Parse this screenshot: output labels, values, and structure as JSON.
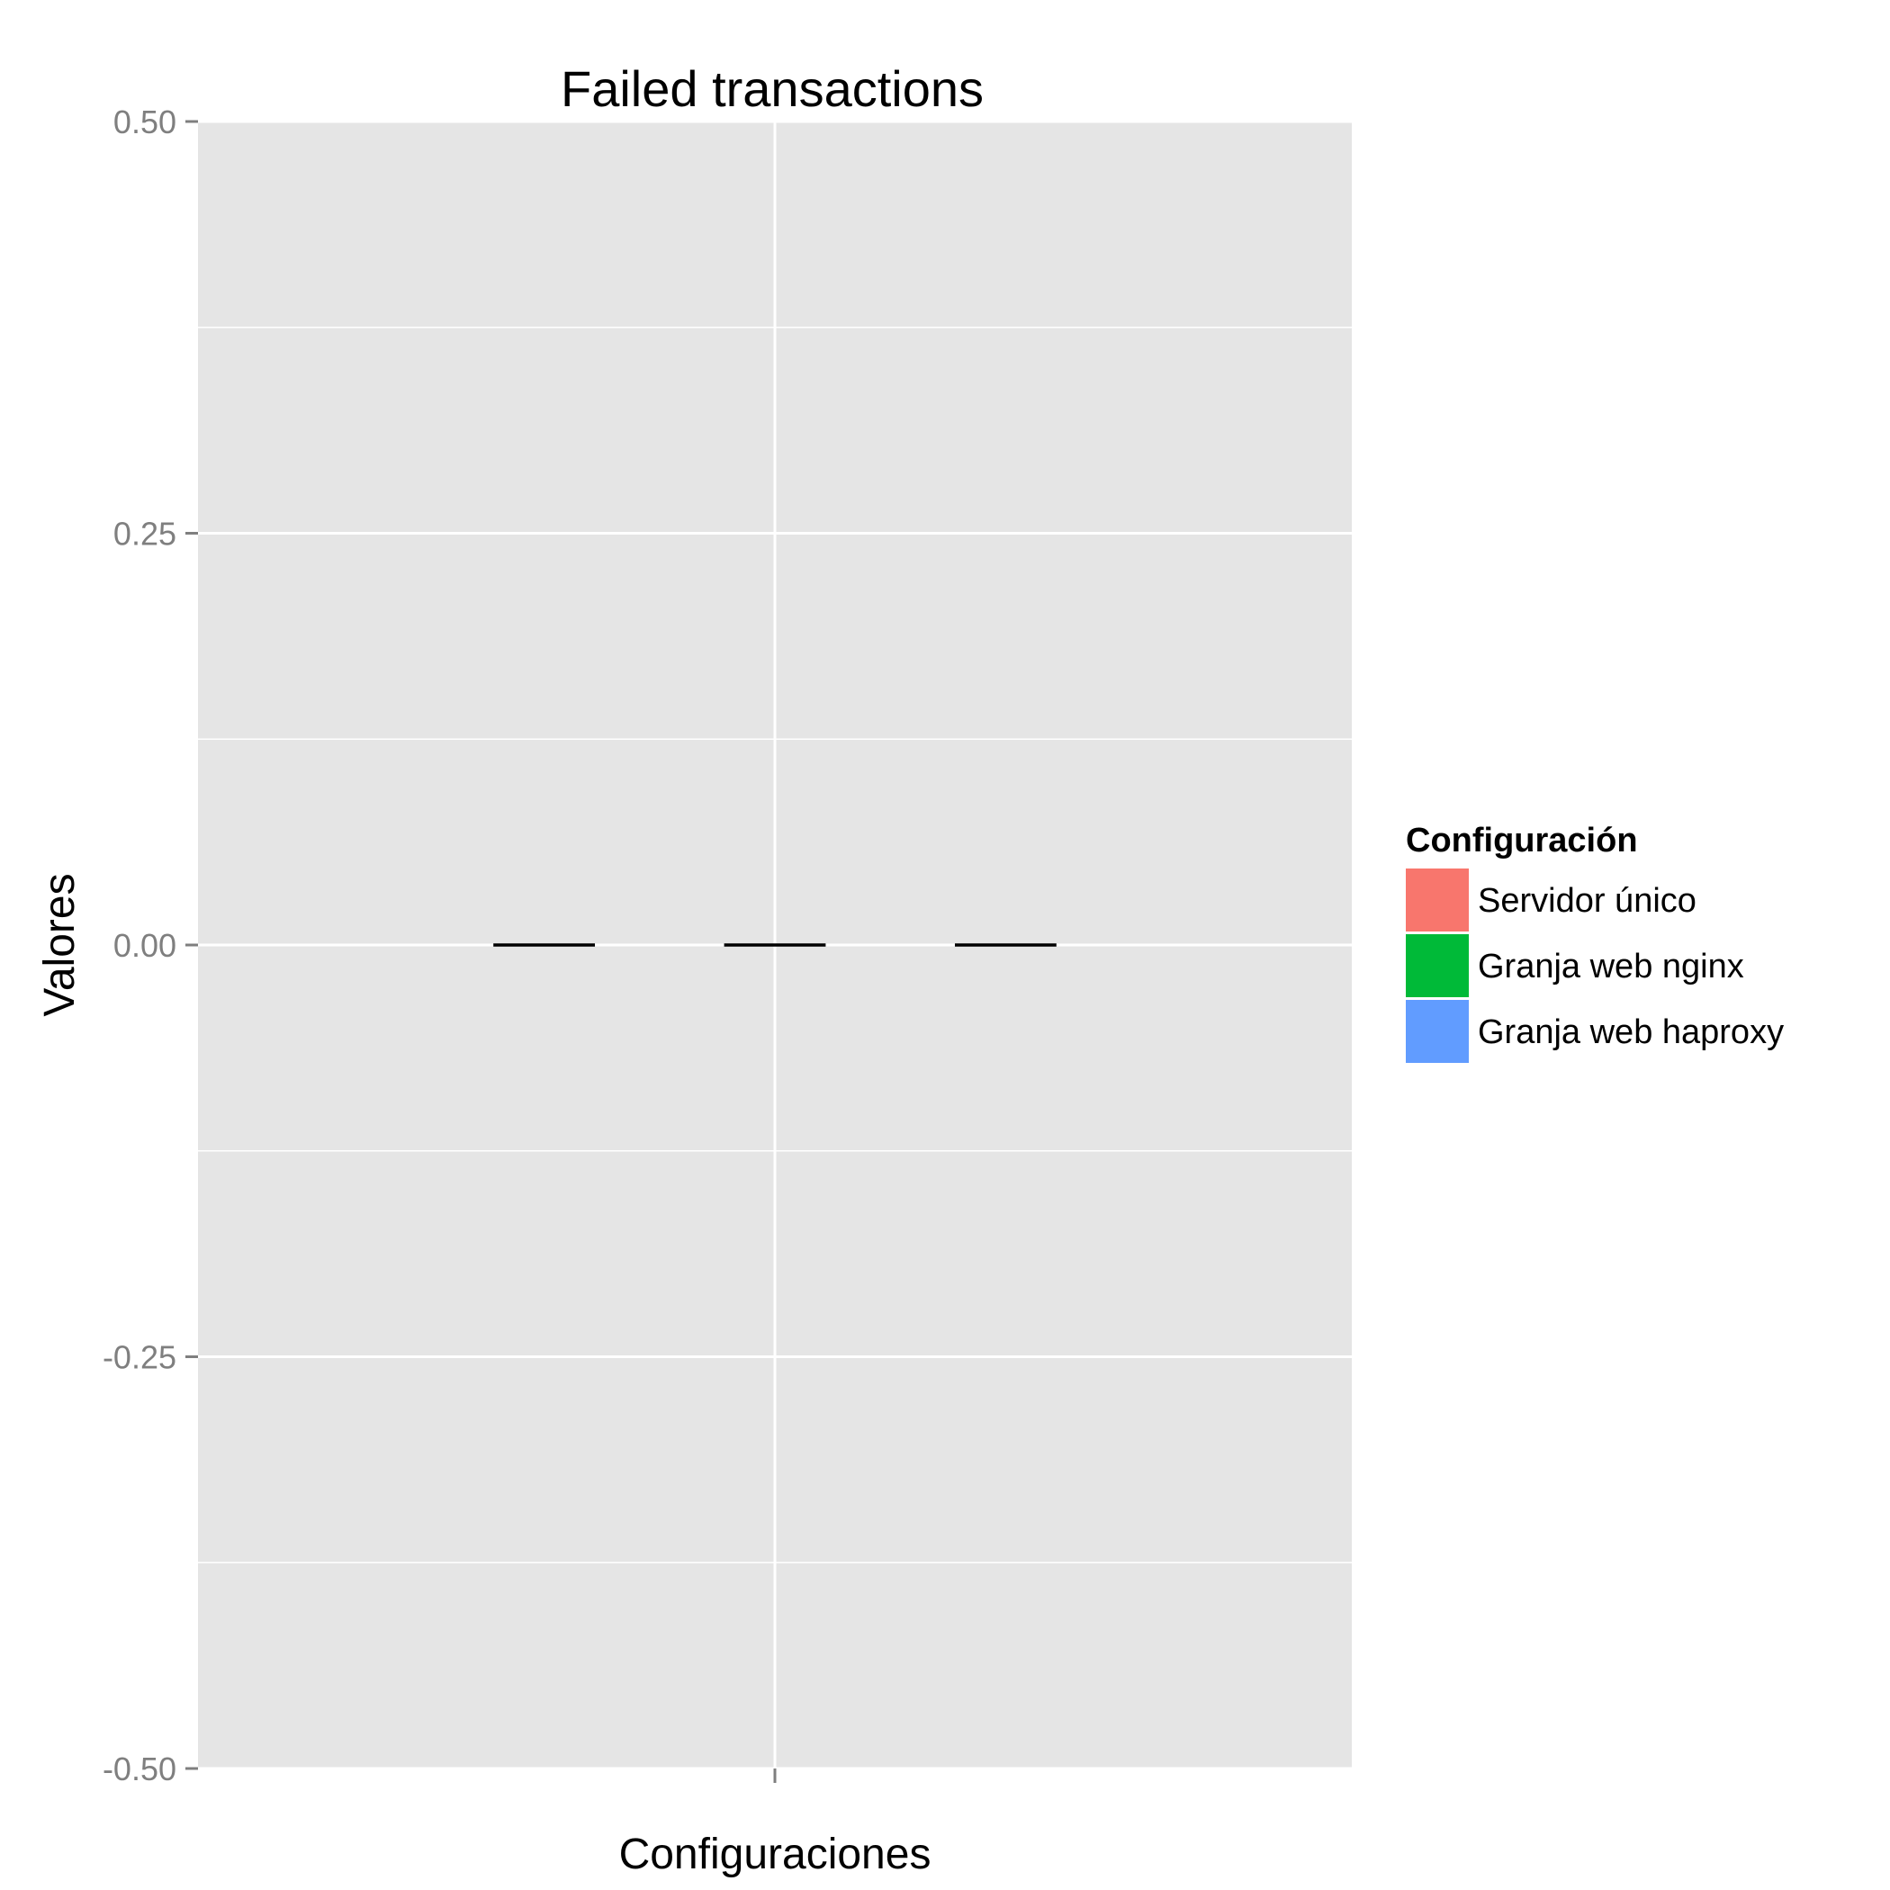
{
  "chart_data": {
    "type": "boxplot",
    "title": "Failed transactions",
    "xlabel": "Configuraciones",
    "ylabel": "Valores",
    "ylim": [
      -0.5,
      0.5
    ],
    "y_ticks": [
      -0.5,
      -0.25,
      0,
      0.25,
      0.5
    ],
    "y_tick_labels": [
      "-0.50",
      "-0.25",
      "0.00",
      "0.25",
      "0.50"
    ],
    "series": [
      {
        "name": "Servidor único",
        "color": "#f8766d",
        "values": [
          0
        ]
      },
      {
        "name": "Granja web nginx",
        "color": "#00ba38",
        "values": [
          0
        ]
      },
      {
        "name": "Granja web haproxy",
        "color": "#619cff",
        "values": [
          0
        ]
      }
    ],
    "legend": {
      "title": "Configuración",
      "position": "right"
    },
    "grid": true,
    "panel_background": "#e5e5e5",
    "grid_color": "#ffffff",
    "median_color": "#000000"
  }
}
